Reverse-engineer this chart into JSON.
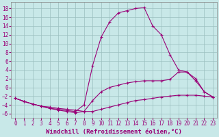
{
  "xlabel": "Windchill (Refroidissement éolien,°C)",
  "background_color": "#c8e8e8",
  "line_color": "#990077",
  "xlim": [
    -0.5,
    23.5
  ],
  "ylim": [
    -7.0,
    19.5
  ],
  "yticks": [
    -6,
    -4,
    -2,
    0,
    2,
    4,
    6,
    8,
    10,
    12,
    14,
    16,
    18
  ],
  "xticks": [
    0,
    1,
    2,
    3,
    4,
    5,
    6,
    7,
    8,
    9,
    10,
    11,
    12,
    13,
    14,
    15,
    16,
    17,
    18,
    19,
    20,
    21,
    22,
    23
  ],
  "line1_x": [
    0,
    1,
    2,
    3,
    4,
    5,
    6,
    7,
    8,
    9,
    10,
    11,
    12,
    13,
    14,
    15,
    16,
    17,
    18,
    19,
    20,
    21,
    22,
    23
  ],
  "line1_y": [
    -2.5,
    -3.2,
    -3.8,
    -4.3,
    -4.8,
    -5.2,
    -5.5,
    -5.8,
    -5.5,
    -5.5,
    -5.0,
    -4.5,
    -4.0,
    -3.5,
    -3.0,
    -2.8,
    -2.5,
    -2.2,
    -2.0,
    -1.8,
    -1.8,
    -1.8,
    -2.0,
    -2.2
  ],
  "line2_x": [
    0,
    1,
    2,
    3,
    4,
    5,
    6,
    7,
    8,
    9,
    10,
    11,
    12,
    13,
    14,
    15,
    16,
    17,
    18,
    19,
    20,
    21,
    22,
    23
  ],
  "line2_y": [
    -2.5,
    -3.2,
    -3.8,
    -4.3,
    -4.8,
    -5.0,
    -5.3,
    -5.5,
    -4.0,
    5.0,
    11.5,
    15.0,
    17.0,
    17.5,
    18.0,
    18.2,
    14.0,
    12.0,
    7.5,
    4.0,
    3.5,
    1.5,
    -1.0,
    -2.2
  ],
  "line3_x": [
    0,
    1,
    2,
    3,
    4,
    5,
    6,
    7,
    8,
    9,
    10,
    11,
    12,
    13,
    14,
    15,
    16,
    17,
    18,
    19,
    20,
    21,
    22,
    23
  ],
  "line3_y": [
    -2.5,
    -3.2,
    -3.8,
    -4.3,
    -4.5,
    -4.8,
    -5.0,
    -5.2,
    -5.5,
    -3.0,
    -1.0,
    0.0,
    0.5,
    1.0,
    1.3,
    1.5,
    1.5,
    1.5,
    1.8,
    3.5,
    3.5,
    2.0,
    -1.0,
    -2.2
  ],
  "tick_fontsize": 5.5,
  "xlabel_fontsize": 6.5,
  "grid_color": "#9bbfbf",
  "marker": "+"
}
